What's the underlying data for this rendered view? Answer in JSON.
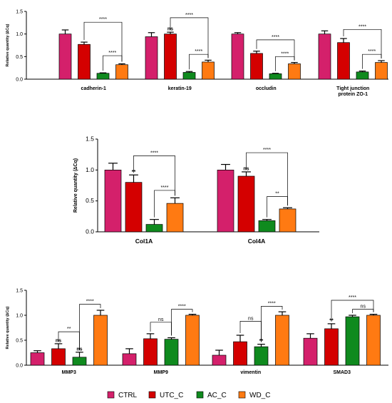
{
  "colors": {
    "CTRL": "#d4206b",
    "UTC_C": "#d40000",
    "AC_C": "#0f8a1e",
    "WD_C": "#ff7a12",
    "mark_magenta": "#a0155f"
  },
  "legend": {
    "items": [
      {
        "label": "CTRL",
        "color": "#d4206b"
      },
      {
        "label": "UTC_C",
        "color": "#d40000"
      },
      {
        "label": "AC_C",
        "color": "#0f8a1e"
      },
      {
        "label": "WD_C",
        "color": "#ff7a12"
      }
    ]
  },
  "chart_data": [
    {
      "type": "bar",
      "ylabel": "Relative quantity (∆Cq)",
      "ylim": [
        0,
        1.5
      ],
      "yticks": [
        "0.0",
        "0.5",
        "1.0",
        "1.5"
      ],
      "series_names": [
        "CTRL",
        "UTC_C",
        "AC_C",
        "WD_C"
      ],
      "groups": [
        {
          "label": [
            "cadherin-1"
          ],
          "values": [
            1.0,
            0.77,
            0.13,
            0.32
          ],
          "errors": [
            0.09,
            0.05,
            0.01,
            0.02
          ],
          "marks": [
            null,
            null,
            null,
            null
          ],
          "brackets": [
            {
              "from": 1,
              "to": 3,
              "level": 1.26,
              "label": "****"
            },
            {
              "from": 2,
              "to": 3,
              "level": 0.52,
              "label": "****"
            }
          ]
        },
        {
          "label": [
            "keratin-19"
          ],
          "values": [
            0.94,
            1.0,
            0.15,
            0.38
          ],
          "errors": [
            0.09,
            0.04,
            0.02,
            0.04
          ],
          "marks": [
            null,
            "ns",
            null,
            null
          ],
          "brackets": [
            {
              "from": 1,
              "to": 3,
              "level": 1.36,
              "label": "****"
            },
            {
              "from": 2,
              "to": 3,
              "level": 0.55,
              "label": "****"
            }
          ]
        },
        {
          "label": [
            "occludin"
          ],
          "values": [
            1.0,
            0.57,
            0.12,
            0.34
          ],
          "errors": [
            0.03,
            0.05,
            0.01,
            0.03
          ],
          "marks": [
            null,
            null,
            null,
            null
          ],
          "brackets": [
            {
              "from": 1,
              "to": 3,
              "level": 0.87,
              "label": "****"
            },
            {
              "from": 2,
              "to": 3,
              "level": 0.5,
              "label": "****"
            }
          ]
        },
        {
          "label": [
            "Tight junction",
            "protein ZO-1"
          ],
          "values": [
            1.0,
            0.81,
            0.16,
            0.37
          ],
          "errors": [
            0.07,
            0.09,
            0.02,
            0.04
          ],
          "marks": [
            null,
            null,
            null,
            null
          ],
          "brackets": [
            {
              "from": 1,
              "to": 3,
              "level": 1.1,
              "label": "****"
            },
            {
              "from": 2,
              "to": 3,
              "level": 0.55,
              "label": "****"
            }
          ]
        }
      ]
    },
    {
      "type": "bar",
      "ylabel": "Relative quantity (∆Cq)",
      "ylim": [
        0,
        1.5
      ],
      "yticks": [
        "0.0",
        "0.5",
        "1.0",
        "1.5"
      ],
      "series_names": [
        "CTRL",
        "UTC_C",
        "AC_C",
        "WD_C"
      ],
      "groups": [
        {
          "label": [
            "Col1A"
          ],
          "values": [
            1.0,
            0.8,
            0.12,
            0.46
          ],
          "errors": [
            0.11,
            0.12,
            0.08,
            0.09
          ],
          "marks": [
            null,
            "**",
            null,
            null
          ],
          "brackets": [
            {
              "from": 1,
              "to": 3,
              "level": 1.23,
              "label": "****"
            },
            {
              "from": 2,
              "to": 3,
              "level": 0.67,
              "label": "****"
            }
          ]
        },
        {
          "label": [
            "Col4A"
          ],
          "values": [
            1.0,
            0.9,
            0.18,
            0.37
          ],
          "errors": [
            0.09,
            0.07,
            0.02,
            0.02
          ],
          "marks": [
            null,
            "ns",
            null,
            null
          ],
          "brackets": [
            {
              "from": 1,
              "to": 3,
              "level": 1.28,
              "label": "****"
            },
            {
              "from": 2,
              "to": 3,
              "level": 0.57,
              "label": "**"
            }
          ]
        }
      ]
    },
    {
      "type": "bar",
      "ylabel": "Relative quantity (∆Cq)",
      "ylim": [
        0,
        1.5
      ],
      "yticks": [
        "0.0",
        "0.5",
        "1.0",
        "1.5"
      ],
      "series_names": [
        "CTRL",
        "UTC_C",
        "AC_C",
        "WD_C"
      ],
      "groups": [
        {
          "label": [
            "MMP3"
          ],
          "values": [
            0.25,
            0.33,
            0.16,
            1.0
          ],
          "errors": [
            0.04,
            0.1,
            0.1,
            0.1
          ],
          "marks": [
            null,
            "ns",
            "ns",
            null
          ],
          "brackets": [
            {
              "from": 1,
              "to": 2,
              "level": 0.67,
              "label": "**"
            },
            {
              "from": 2,
              "to": 3,
              "level": 1.22,
              "label": "****"
            }
          ]
        },
        {
          "label": [
            "MMP9"
          ],
          "values": [
            0.23,
            0.53,
            0.52,
            1.0
          ],
          "errors": [
            0.1,
            0.1,
            0.03,
            0.02
          ],
          "marks": [
            null,
            null,
            null,
            null
          ],
          "brackets": [
            {
              "from": 1,
              "to": 2,
              "level": 0.86,
              "label": "ns"
            },
            {
              "from": 2,
              "to": 3,
              "level": 1.12,
              "label": "****"
            }
          ]
        },
        {
          "label": [
            "vimentin"
          ],
          "values": [
            0.2,
            0.47,
            0.37,
            1.0
          ],
          "errors": [
            0.1,
            0.13,
            0.05,
            0.07
          ],
          "marks": [
            null,
            null,
            "**",
            null
          ],
          "brackets": [
            {
              "from": 1,
              "to": 2,
              "level": 0.88,
              "label": "ns"
            },
            {
              "from": 2,
              "to": 3,
              "level": 1.18,
              "label": "****"
            }
          ]
        },
        {
          "label": [
            "SMAD3"
          ],
          "values": [
            0.54,
            0.73,
            0.97,
            1.0
          ],
          "errors": [
            0.09,
            0.1,
            0.03,
            0.02
          ],
          "marks": [
            null,
            "**",
            null,
            null
          ],
          "brackets": [
            {
              "from": 2,
              "to": 3,
              "level": 1.12,
              "label": "ns"
            },
            {
              "from": 1,
              "to": 3,
              "level": 1.3,
              "label": "****"
            }
          ]
        }
      ]
    }
  ]
}
